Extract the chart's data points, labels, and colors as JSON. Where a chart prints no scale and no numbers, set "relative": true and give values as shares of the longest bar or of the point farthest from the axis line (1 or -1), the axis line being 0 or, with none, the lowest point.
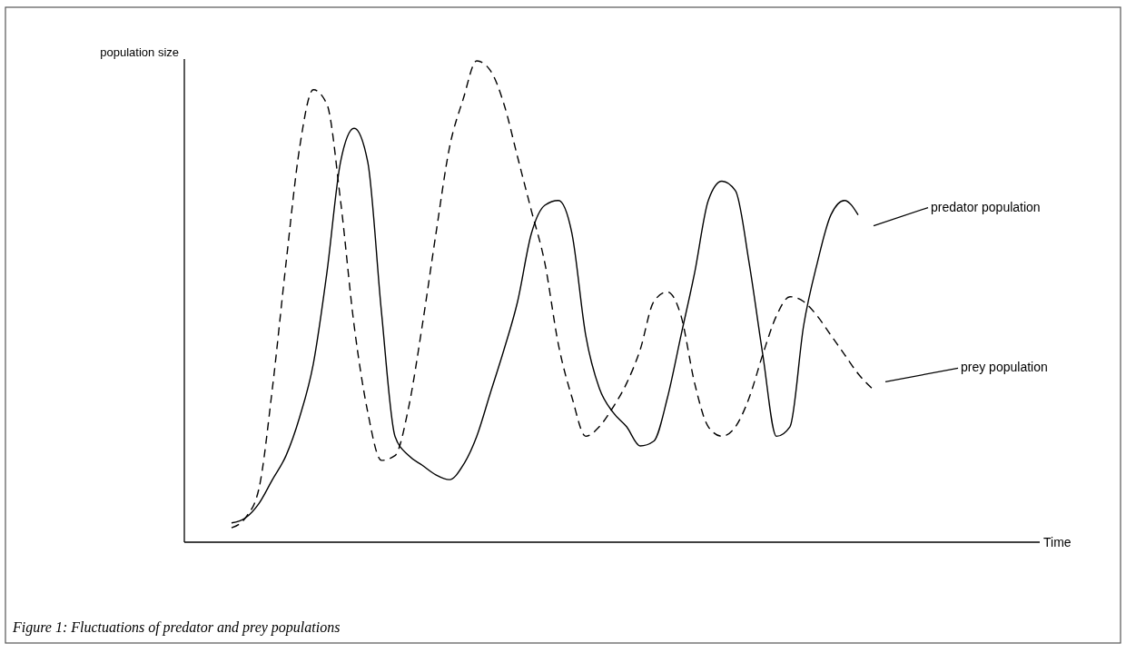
{
  "chart_data": {
    "type": "line",
    "relative": true,
    "ylabel": "population size",
    "annotations": [
      "Time",
      "Figure 1:  Fluctuations of predator and prey populations"
    ],
    "grid": false,
    "tick_labels": false,
    "categories": [
      null,
      null,
      null,
      null,
      null,
      null,
      null,
      null,
      null,
      null,
      null,
      null,
      null,
      null,
      null,
      null,
      null,
      null,
      null,
      null,
      null,
      null,
      null,
      null,
      null,
      null,
      null,
      null,
      null,
      null,
      null,
      null,
      null,
      null,
      null,
      null,
      null,
      null,
      null,
      null,
      null,
      null,
      null,
      null,
      null,
      null,
      null,
      null
    ],
    "series": [
      {
        "name": "predator population",
        "color": "#000000",
        "line_style": "solid",
        "values": [
          0.04,
          0.05,
          0.08,
          0.13,
          0.18,
          0.26,
          0.37,
          0.56,
          0.79,
          0.86,
          0.79,
          0.48,
          0.22,
          0.18,
          0.16,
          0.14,
          0.13,
          0.16,
          0.22,
          0.31,
          0.4,
          0.5,
          0.64,
          0.7,
          0.71,
          0.64,
          0.43,
          0.32,
          0.27,
          0.24,
          0.2,
          0.21,
          0.3,
          0.43,
          0.56,
          0.71,
          0.75,
          0.73,
          0.58,
          0.39,
          0.22,
          0.24,
          0.45,
          0.58,
          0.68,
          0.71,
          0.68,
          null
        ]
      },
      {
        "name": "prey population",
        "color": "#000000",
        "line_style": "dashed",
        "values": [
          0.03,
          0.05,
          0.11,
          0.32,
          0.58,
          0.82,
          0.94,
          0.91,
          0.71,
          0.45,
          0.27,
          0.17,
          0.18,
          0.28,
          0.45,
          0.64,
          0.82,
          0.92,
          1,
          0.98,
          0.91,
          0.8,
          0.69,
          0.58,
          0.41,
          0.3,
          0.22,
          0.24,
          0.28,
          0.33,
          0.4,
          0.5,
          0.52,
          0.47,
          0.33,
          0.24,
          0.22,
          0.24,
          0.3,
          0.39,
          0.47,
          0.51,
          0.5,
          0.47,
          0.43,
          0.39,
          0.35,
          0.32
        ]
      }
    ]
  }
}
